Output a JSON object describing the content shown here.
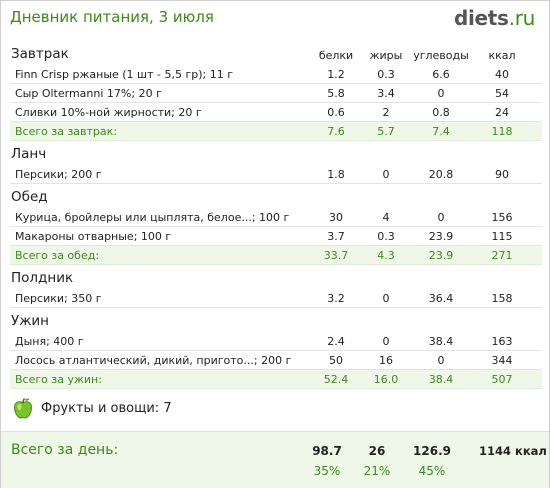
{
  "header": {
    "title": "Дневник питания, 3 июля",
    "logo_main": "diets",
    "logo_tld": ".ru"
  },
  "columns": {
    "protein": "белки",
    "fat": "жиры",
    "carbs": "углеводы",
    "kcal": "ккал"
  },
  "meals": [
    {
      "title": "Завтрак",
      "items": [
        {
          "name": "Finn Crisp ржаные (1 шт - 5,5 гр); 11 г",
          "protein": "1.2",
          "fat": "0.3",
          "carbs": "6.6",
          "kcal": "40"
        },
        {
          "name": "Сыр Oltermanni 17%; 20 г",
          "protein": "5.8",
          "fat": "3.4",
          "carbs": "0",
          "kcal": "54"
        },
        {
          "name": "Сливки 10%-ной жирности; 20 г",
          "protein": "0.6",
          "fat": "2",
          "carbs": "0.8",
          "kcal": "24"
        }
      ],
      "total": {
        "label": "Всего за завтрак:",
        "protein": "7.6",
        "fat": "5.7",
        "carbs": "7.4",
        "kcal": "118"
      }
    },
    {
      "title": "Ланч",
      "items": [
        {
          "name": "Персики; 200 г",
          "protein": "1.8",
          "fat": "0",
          "carbs": "20.8",
          "kcal": "90"
        }
      ]
    },
    {
      "title": "Обед",
      "items": [
        {
          "name": "Курица, бройлеры или цыплята, белое...; 100 г",
          "protein": "30",
          "fat": "4",
          "carbs": "0",
          "kcal": "156"
        },
        {
          "name": "Макароны отварные; 100 г",
          "protein": "3.7",
          "fat": "0.3",
          "carbs": "23.9",
          "kcal": "115"
        }
      ],
      "total": {
        "label": "Всего за обед:",
        "protein": "33.7",
        "fat": "4.3",
        "carbs": "23.9",
        "kcal": "271"
      }
    },
    {
      "title": "Полдник",
      "items": [
        {
          "name": "Персики; 350 г",
          "protein": "3.2",
          "fat": "0",
          "carbs": "36.4",
          "kcal": "158"
        }
      ]
    },
    {
      "title": "Ужин",
      "items": [
        {
          "name": "Дыня; 400 г",
          "protein": "2.4",
          "fat": "0",
          "carbs": "38.4",
          "kcal": "163"
        },
        {
          "name": "Лосось атлантический, дикий, пригото...; 200 г",
          "protein": "50",
          "fat": "16",
          "carbs": "0",
          "kcal": "344"
        }
      ],
      "total": {
        "label": "Всего за ужин:",
        "protein": "52.4",
        "fat": "16.0",
        "carbs": "38.4",
        "kcal": "507"
      }
    }
  ],
  "fruits": {
    "icon": "green-apple-icon",
    "label": "Фрукты и овощи: 7"
  },
  "day_total": {
    "label": "Всего за день:",
    "protein": "98.7",
    "fat": "26",
    "carbs": "126.9",
    "kcal": "1144 ккал",
    "protein_pct": "35%",
    "fat_pct": "21%",
    "carbs_pct": "45%"
  },
  "colors": {
    "accent_green": "#3c8a19",
    "total_bg": "#eef7e8"
  }
}
